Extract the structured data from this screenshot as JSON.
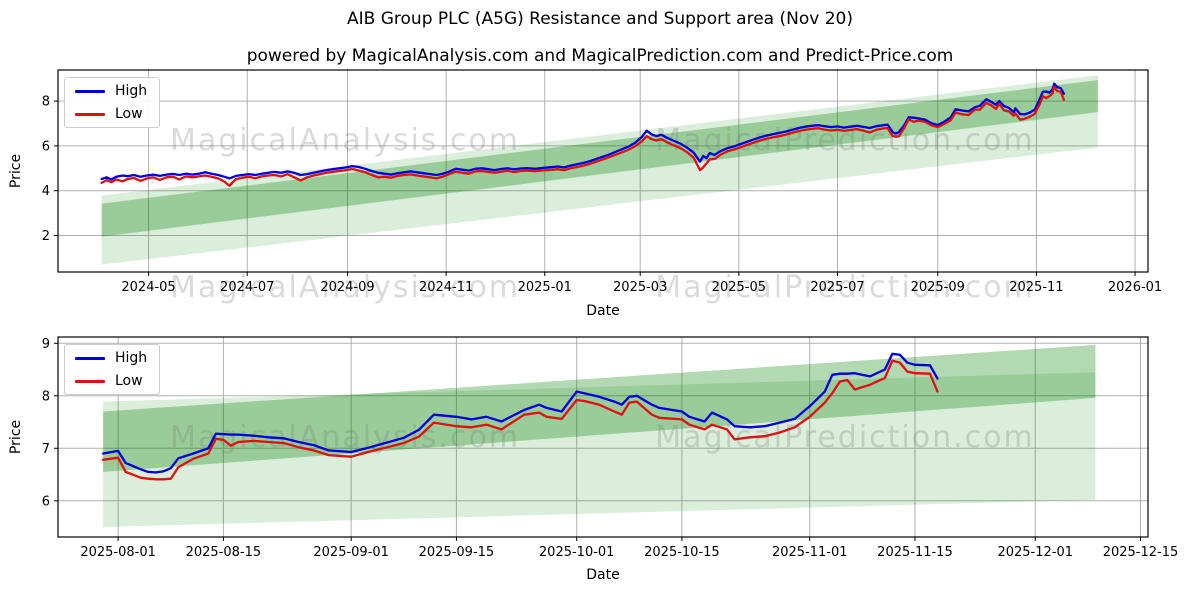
{
  "figure": {
    "title": "AIB Group PLC (A5G) Resistance and Support area (Nov 20)",
    "subtitle": "powered by MagicalAnalysis.com and MagicalPrediction.com and Predict-Price.com"
  },
  "watermarks": {
    "left": "MagicalAnalysis.com",
    "right": "MagicalPrediction.com"
  },
  "colors": {
    "high": "#0000dd",
    "low": "#dd1111",
    "band": "#008000",
    "grid": "#b0b0b0",
    "spine": "#000000"
  },
  "chart_data": [
    {
      "type": "line",
      "title": "",
      "xlabel": "Date",
      "ylabel": "Price",
      "legend": [
        "High",
        "Low"
      ],
      "legend_position": "upper left",
      "grid": true,
      "xlim": [
        "2024-03-06",
        "2026-01-09"
      ],
      "ylim": [
        0.37,
        9.39
      ],
      "y_ticks": [
        2,
        4,
        6,
        8
      ],
      "x_ticks": [
        {
          "date": "2024-05-01",
          "label": "2024-05"
        },
        {
          "date": "2024-07-01",
          "label": "2024-07"
        },
        {
          "date": "2024-09-01",
          "label": "2024-09"
        },
        {
          "date": "2024-11-01",
          "label": "2024-11"
        },
        {
          "date": "2025-01-01",
          "label": "2025-01"
        },
        {
          "date": "2025-03-01",
          "label": "2025-03"
        },
        {
          "date": "2025-05-01",
          "label": "2025-05"
        },
        {
          "date": "2025-07-01",
          "label": "2025-07"
        },
        {
          "date": "2025-09-01",
          "label": "2025-09"
        },
        {
          "date": "2025-11-01",
          "label": "2025-11"
        },
        {
          "date": "2026-01-01",
          "label": "2026-01"
        }
      ],
      "bands": [
        {
          "name": "support-band-light",
          "x": [
            "2024-04-02",
            "2025-12-09"
          ],
          "top": [
            3.78,
            9.16
          ],
          "bottom": [
            0.7,
            5.93
          ],
          "opacity": 0.14
        },
        {
          "name": "resistance-band-dark",
          "x": [
            "2024-04-02",
            "2025-12-09"
          ],
          "top": [
            3.42,
            8.94
          ],
          "bottom": [
            1.95,
            7.51
          ],
          "opacity": 0.3
        }
      ],
      "x": [
        "2024-04-02",
        "2024-04-05",
        "2024-04-08",
        "2024-04-11",
        "2024-04-15",
        "2024-04-18",
        "2024-04-22",
        "2024-04-26",
        "2024-04-30",
        "2024-05-04",
        "2024-05-08",
        "2024-05-12",
        "2024-05-16",
        "2024-05-20",
        "2024-05-24",
        "2024-05-28",
        "2024-06-01",
        "2024-06-05",
        "2024-06-09",
        "2024-06-13",
        "2024-06-17",
        "2024-06-20",
        "2024-06-24",
        "2024-06-28",
        "2024-07-02",
        "2024-07-06",
        "2024-07-10",
        "2024-07-14",
        "2024-07-18",
        "2024-07-22",
        "2024-07-26",
        "2024-07-30",
        "2024-08-03",
        "2024-08-07",
        "2024-08-11",
        "2024-08-15",
        "2024-08-19",
        "2024-08-23",
        "2024-08-27",
        "2024-08-31",
        "2024-09-04",
        "2024-09-08",
        "2024-09-12",
        "2024-09-16",
        "2024-09-20",
        "2024-09-24",
        "2024-09-28",
        "2024-10-02",
        "2024-10-06",
        "2024-10-10",
        "2024-10-14",
        "2024-10-18",
        "2024-10-22",
        "2024-10-26",
        "2024-10-30",
        "2024-11-03",
        "2024-11-07",
        "2024-11-11",
        "2024-11-15",
        "2024-11-19",
        "2024-11-23",
        "2024-11-27",
        "2024-12-01",
        "2024-12-05",
        "2024-12-09",
        "2024-12-13",
        "2024-12-17",
        "2024-12-21",
        "2024-12-26",
        "2024-12-31",
        "2025-01-05",
        "2025-01-09",
        "2025-01-13",
        "2025-01-17",
        "2025-01-21",
        "2025-01-25",
        "2025-01-29",
        "2025-02-02",
        "2025-02-06",
        "2025-02-10",
        "2025-02-14",
        "2025-02-18",
        "2025-02-22",
        "2025-02-26",
        "2025-03-02",
        "2025-03-05",
        "2025-03-08",
        "2025-03-11",
        "2025-03-14",
        "2025-03-18",
        "2025-03-22",
        "2025-03-26",
        "2025-03-30",
        "2025-04-03",
        "2025-04-07",
        "2025-04-09",
        "2025-04-11",
        "2025-04-13",
        "2025-04-16",
        "2025-04-20",
        "2025-04-24",
        "2025-04-28",
        "2025-05-02",
        "2025-05-06",
        "2025-05-10",
        "2025-05-14",
        "2025-05-18",
        "2025-05-22",
        "2025-05-26",
        "2025-05-30",
        "2025-06-03",
        "2025-06-07",
        "2025-06-11",
        "2025-06-15",
        "2025-06-19",
        "2025-06-23",
        "2025-06-27",
        "2025-07-01",
        "2025-07-05",
        "2025-07-09",
        "2025-07-13",
        "2025-07-17",
        "2025-07-21",
        "2025-07-25",
        "2025-07-29",
        "2025-08-01",
        "2025-08-04",
        "2025-08-06",
        "2025-08-08",
        "2025-08-11",
        "2025-08-14",
        "2025-08-17",
        "2025-08-20",
        "2025-08-24",
        "2025-08-28",
        "2025-09-01",
        "2025-09-05",
        "2025-09-09",
        "2025-09-12",
        "2025-09-16",
        "2025-09-20",
        "2025-09-24",
        "2025-09-27",
        "2025-10-01",
        "2025-10-04",
        "2025-10-07",
        "2025-10-09",
        "2025-10-12",
        "2025-10-15",
        "2025-10-18",
        "2025-10-19",
        "2025-10-22",
        "2025-10-25",
        "2025-10-28",
        "2025-10-31",
        "2025-11-03",
        "2025-11-05",
        "2025-11-07",
        "2025-11-09",
        "2025-11-11",
        "2025-11-12",
        "2025-11-14",
        "2025-11-16",
        "2025-11-18"
      ],
      "series": [
        {
          "name": "High",
          "color": "#0000dd",
          "values": [
            4.52,
            4.6,
            4.5,
            4.62,
            4.68,
            4.65,
            4.7,
            4.62,
            4.68,
            4.72,
            4.66,
            4.72,
            4.75,
            4.7,
            4.76,
            4.72,
            4.76,
            4.82,
            4.76,
            4.7,
            4.62,
            4.55,
            4.66,
            4.7,
            4.74,
            4.7,
            4.76,
            4.8,
            4.84,
            4.8,
            4.86,
            4.8,
            4.7,
            4.74,
            4.8,
            4.86,
            4.92,
            4.96,
            5.0,
            5.04,
            5.1,
            5.06,
            4.98,
            4.88,
            4.8,
            4.76,
            4.72,
            4.78,
            4.82,
            4.86,
            4.82,
            4.78,
            4.74,
            4.7,
            4.76,
            4.86,
            4.98,
            4.94,
            4.9,
            4.98,
            5.0,
            4.96,
            4.92,
            4.97,
            5.0,
            4.95,
            4.99,
            5.01,
            4.98,
            5.02,
            5.05,
            5.08,
            5.04,
            5.12,
            5.18,
            5.24,
            5.32,
            5.42,
            5.52,
            5.62,
            5.74,
            5.86,
            5.98,
            6.15,
            6.4,
            6.68,
            6.52,
            6.44,
            6.5,
            6.35,
            6.22,
            6.1,
            5.92,
            5.7,
            5.3,
            5.55,
            5.45,
            5.68,
            5.6,
            5.78,
            5.9,
            5.98,
            6.08,
            6.18,
            6.28,
            6.38,
            6.46,
            6.52,
            6.58,
            6.64,
            6.72,
            6.8,
            6.86,
            6.9,
            6.93,
            6.88,
            6.84,
            6.87,
            6.82,
            6.86,
            6.9,
            6.85,
            6.8,
            6.88,
            6.92,
            6.95,
            6.62,
            6.55,
            6.62,
            6.9,
            7.28,
            7.26,
            7.23,
            7.18,
            7.02,
            6.93,
            7.08,
            7.28,
            7.64,
            7.58,
            7.54,
            7.73,
            7.79,
            8.08,
            7.97,
            7.84,
            8.0,
            7.78,
            7.7,
            7.5,
            7.68,
            7.42,
            7.41,
            7.49,
            7.62,
            8.08,
            8.42,
            8.43,
            8.38,
            8.52,
            8.78,
            8.62,
            8.58,
            8.33
          ]
        },
        {
          "name": "Low",
          "color": "#dd1111",
          "values": [
            4.35,
            4.47,
            4.38,
            4.5,
            4.42,
            4.52,
            4.57,
            4.44,
            4.55,
            4.6,
            4.48,
            4.6,
            4.63,
            4.5,
            4.64,
            4.6,
            4.64,
            4.68,
            4.62,
            4.55,
            4.4,
            4.22,
            4.52,
            4.58,
            4.62,
            4.56,
            4.64,
            4.68,
            4.7,
            4.64,
            4.74,
            4.6,
            4.46,
            4.6,
            4.68,
            4.74,
            4.8,
            4.84,
            4.88,
            4.92,
            4.97,
            4.9,
            4.82,
            4.7,
            4.6,
            4.62,
            4.58,
            4.66,
            4.7,
            4.73,
            4.68,
            4.64,
            4.6,
            4.55,
            4.63,
            4.74,
            4.85,
            4.8,
            4.76,
            4.86,
            4.88,
            4.84,
            4.8,
            4.85,
            4.89,
            4.83,
            4.88,
            4.9,
            4.87,
            4.91,
            4.93,
            4.96,
            4.92,
            5.0,
            5.06,
            5.12,
            5.2,
            5.3,
            5.4,
            5.5,
            5.61,
            5.72,
            5.84,
            5.99,
            6.2,
            6.44,
            6.3,
            6.24,
            6.3,
            6.15,
            6.02,
            5.9,
            5.72,
            5.48,
            4.92,
            5.05,
            5.22,
            5.4,
            5.42,
            5.62,
            5.76,
            5.84,
            5.94,
            6.04,
            6.14,
            6.24,
            6.32,
            6.38,
            6.44,
            6.5,
            6.58,
            6.66,
            6.72,
            6.76,
            6.79,
            6.73,
            6.69,
            6.72,
            6.67,
            6.71,
            6.75,
            6.68,
            6.6,
            6.72,
            6.78,
            6.8,
            6.45,
            6.41,
            6.43,
            6.78,
            7.18,
            7.08,
            7.13,
            7.08,
            6.92,
            6.84,
            6.98,
            7.15,
            7.49,
            7.41,
            7.38,
            7.62,
            7.62,
            7.92,
            7.82,
            7.65,
            7.88,
            7.58,
            7.54,
            7.35,
            7.45,
            7.17,
            7.22,
            7.3,
            7.44,
            7.86,
            8.22,
            8.14,
            8.22,
            8.35,
            8.64,
            8.45,
            8.42,
            8.06
          ]
        }
      ]
    },
    {
      "type": "line",
      "title": "",
      "xlabel": "Date",
      "ylabel": "Price",
      "legend": [
        "High",
        "Low"
      ],
      "legend_position": "upper left",
      "grid": true,
      "xlim": [
        "2025-07-24",
        "2025-12-16"
      ],
      "ylim": [
        5.31,
        9.12
      ],
      "y_ticks": [
        6,
        7,
        8,
        9
      ],
      "x_ticks": [
        {
          "date": "2025-08-01",
          "label": "2025-08-01"
        },
        {
          "date": "2025-08-15",
          "label": "2025-08-15"
        },
        {
          "date": "2025-09-01",
          "label": "2025-09-01"
        },
        {
          "date": "2025-09-15",
          "label": "2025-09-15"
        },
        {
          "date": "2025-10-01",
          "label": "2025-10-01"
        },
        {
          "date": "2025-10-15",
          "label": "2025-10-15"
        },
        {
          "date": "2025-11-01",
          "label": "2025-11-01"
        },
        {
          "date": "2025-11-15",
          "label": "2025-11-15"
        },
        {
          "date": "2025-12-01",
          "label": "2025-12-01"
        },
        {
          "date": "2025-12-15",
          "label": "2025-12-15"
        }
      ],
      "bands": [
        {
          "name": "support-band-light",
          "x": [
            "2025-07-30",
            "2025-12-09"
          ],
          "top": [
            7.89,
            8.45
          ],
          "bottom": [
            5.5,
            6.02
          ],
          "opacity": 0.14
        },
        {
          "name": "resistance-band-dark",
          "x": [
            "2025-07-30",
            "2025-12-09"
          ],
          "top": [
            7.7,
            8.97
          ],
          "bottom": [
            6.55,
            7.96
          ],
          "opacity": 0.3
        }
      ],
      "x": [
        "2025-07-30",
        "2025-08-01",
        "2025-08-02",
        "2025-08-04",
        "2025-08-05",
        "2025-08-06",
        "2025-08-07",
        "2025-08-08",
        "2025-08-09",
        "2025-08-11",
        "2025-08-13",
        "2025-08-14",
        "2025-08-15",
        "2025-08-16",
        "2025-08-17",
        "2025-08-19",
        "2025-08-21",
        "2025-08-23",
        "2025-08-25",
        "2025-08-27",
        "2025-08-29",
        "2025-09-01",
        "2025-09-03",
        "2025-09-05",
        "2025-09-08",
        "2025-09-10",
        "2025-09-12",
        "2025-09-15",
        "2025-09-17",
        "2025-09-19",
        "2025-09-21",
        "2025-09-24",
        "2025-09-26",
        "2025-09-27",
        "2025-09-29",
        "2025-10-01",
        "2025-10-02",
        "2025-10-04",
        "2025-10-06",
        "2025-10-07",
        "2025-10-08",
        "2025-10-09",
        "2025-10-11",
        "2025-10-12",
        "2025-10-15",
        "2025-10-16",
        "2025-10-18",
        "2025-10-19",
        "2025-10-21",
        "2025-10-22",
        "2025-10-24",
        "2025-10-26",
        "2025-10-28",
        "2025-10-30",
        "2025-11-01",
        "2025-11-03",
        "2025-11-04",
        "2025-11-05",
        "2025-11-06",
        "2025-11-07",
        "2025-11-09",
        "2025-11-11",
        "2025-11-12",
        "2025-11-13",
        "2025-11-14",
        "2025-11-15",
        "2025-11-17",
        "2025-11-18"
      ],
      "series": [
        {
          "name": "High",
          "color": "#0000dd",
          "values": [
            6.9,
            6.95,
            6.72,
            6.6,
            6.55,
            6.54,
            6.56,
            6.62,
            6.81,
            6.9,
            7.0,
            7.28,
            7.27,
            7.26,
            7.26,
            7.24,
            7.21,
            7.19,
            7.12,
            7.06,
            6.96,
            6.93,
            7.0,
            7.08,
            7.2,
            7.35,
            7.64,
            7.6,
            7.55,
            7.6,
            7.51,
            7.73,
            7.83,
            7.77,
            7.7,
            8.08,
            8.05,
            7.98,
            7.89,
            7.83,
            7.98,
            8.0,
            7.83,
            7.77,
            7.7,
            7.6,
            7.51,
            7.68,
            7.55,
            7.42,
            7.4,
            7.42,
            7.49,
            7.56,
            7.8,
            8.08,
            8.4,
            8.42,
            8.42,
            8.43,
            8.37,
            8.5,
            8.8,
            8.78,
            8.63,
            8.59,
            8.58,
            8.33
          ]
        },
        {
          "name": "Low",
          "color": "#dd1111",
          "values": [
            6.78,
            6.82,
            6.55,
            6.44,
            6.42,
            6.41,
            6.41,
            6.42,
            6.64,
            6.8,
            6.9,
            7.18,
            7.16,
            7.05,
            7.12,
            7.14,
            7.12,
            7.1,
            7.02,
            6.96,
            6.87,
            6.84,
            6.92,
            6.99,
            7.1,
            7.22,
            7.49,
            7.42,
            7.4,
            7.45,
            7.36,
            7.64,
            7.68,
            7.6,
            7.56,
            7.92,
            7.9,
            7.83,
            7.7,
            7.64,
            7.87,
            7.89,
            7.64,
            7.58,
            7.55,
            7.45,
            7.36,
            7.45,
            7.36,
            7.17,
            7.21,
            7.23,
            7.3,
            7.4,
            7.6,
            7.87,
            8.05,
            8.27,
            8.3,
            8.12,
            8.21,
            8.34,
            8.67,
            8.63,
            8.46,
            8.43,
            8.42,
            8.08
          ]
        }
      ]
    }
  ]
}
